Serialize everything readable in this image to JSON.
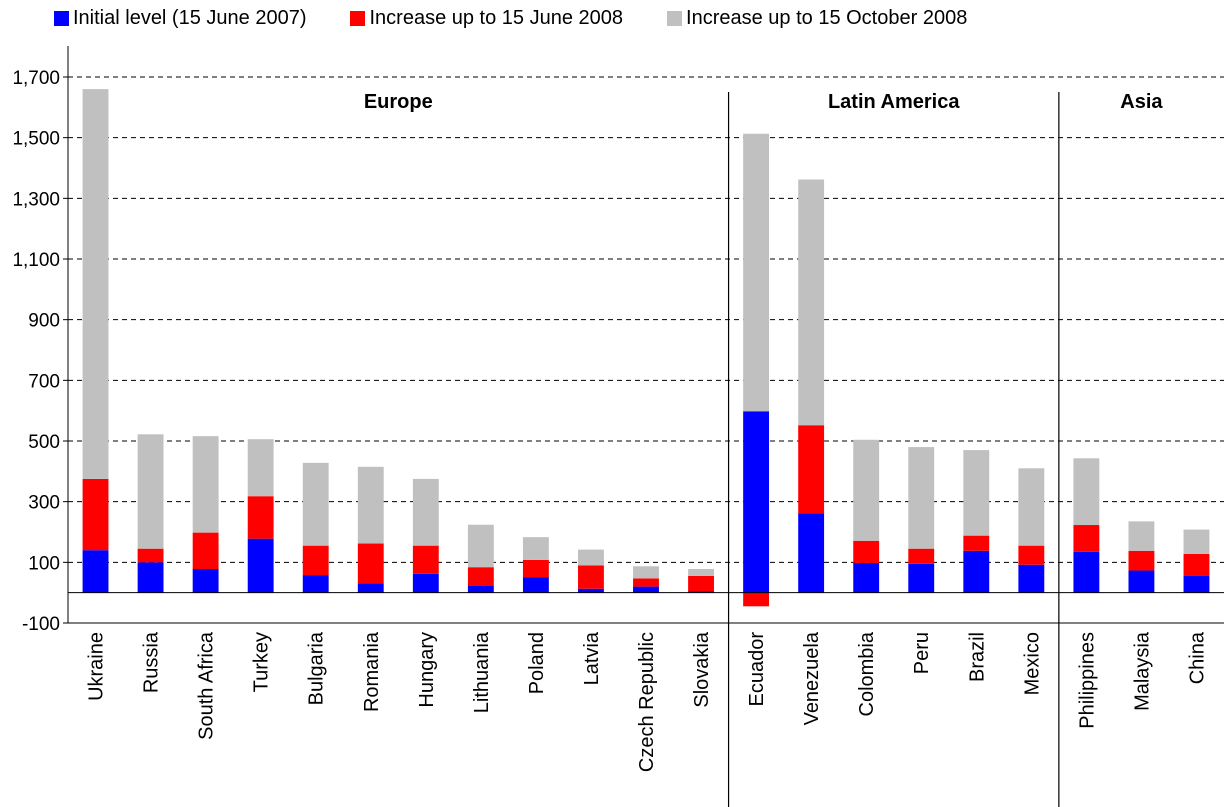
{
  "chart_data": {
    "type": "bar",
    "stacked": true,
    "title": "",
    "xlabel": "",
    "ylabel": "",
    "ylim": [
      -100,
      1700
    ],
    "yticks": [
      -100,
      100,
      300,
      500,
      700,
      900,
      1100,
      1300,
      1500,
      1700
    ],
    "ytick_labels": [
      "-100",
      "100",
      "300",
      "500",
      "700",
      "900",
      "1,100",
      "1,300",
      "1,500",
      "1,700"
    ],
    "grid": "horizontal dashed",
    "legend_position": "top",
    "categories": [
      "Ukraine",
      "Russia",
      "South Africa",
      "Turkey",
      "Bulgaria",
      "Romania",
      "Hungary",
      "Lithuania",
      "Poland",
      "Latvia",
      "Czech Republic",
      "Slovakia",
      "Ecuador",
      "Venezuela",
      "Colombia",
      "Peru",
      "Brazil",
      "Mexico",
      "Philippines",
      "Malaysia",
      "China"
    ],
    "series": [
      {
        "name": "Initial level (15 June 2007)",
        "color": "#0000FF",
        "values": [
          140,
          100,
          78,
          178,
          58,
          30,
          62,
          22,
          50,
          13,
          20,
          5,
          598,
          262,
          98,
          95,
          138,
          92,
          135,
          73,
          55
        ]
      },
      {
        "name": "Increase up to 15 June 2008",
        "color": "#FF0000",
        "values": [
          235,
          45,
          120,
          140,
          97,
          132,
          93,
          62,
          58,
          77,
          27,
          50,
          -45,
          290,
          73,
          50,
          50,
          63,
          88,
          65,
          73
        ]
      },
      {
        "name": "Increase up to 15 October 2008",
        "color": "#C0C0C0",
        "values": [
          1285,
          377,
          318,
          188,
          273,
          253,
          220,
          140,
          75,
          52,
          40,
          23,
          915,
          810,
          333,
          335,
          282,
          255,
          220,
          97,
          80
        ]
      }
    ],
    "groups": [
      {
        "label": "Europe",
        "start": 0,
        "end": 11
      },
      {
        "label": "Latin America",
        "start": 12,
        "end": 17
      },
      {
        "label": "Asia",
        "start": 18,
        "end": 20
      }
    ]
  }
}
